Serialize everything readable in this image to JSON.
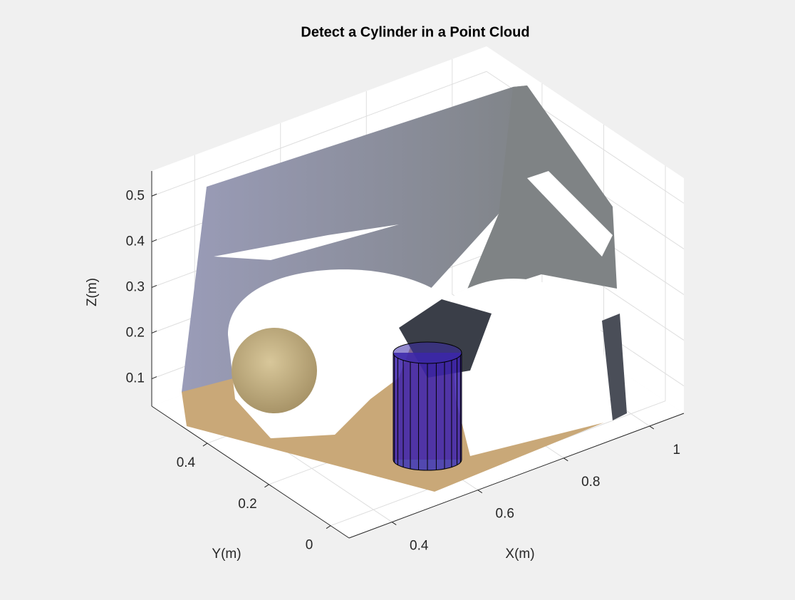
{
  "chart_data": {
    "type": "scatter3",
    "title": "Detect a Cylinder in a Point Cloud",
    "xlabel": "X(m)",
    "ylabel": "Y(m)",
    "zlabel": "Z(m)",
    "xlim": [
      0.3,
      1.08
    ],
    "ylim": [
      -0.06,
      0.58
    ],
    "zlim": [
      0.04,
      0.555
    ],
    "xticks": [
      0.4,
      0.6,
      0.8,
      1
    ],
    "yticks": [
      0,
      0.2,
      0.4
    ],
    "zticks": [
      0.1,
      0.2,
      0.3,
      0.4,
      0.5
    ],
    "grid": true
  }
}
